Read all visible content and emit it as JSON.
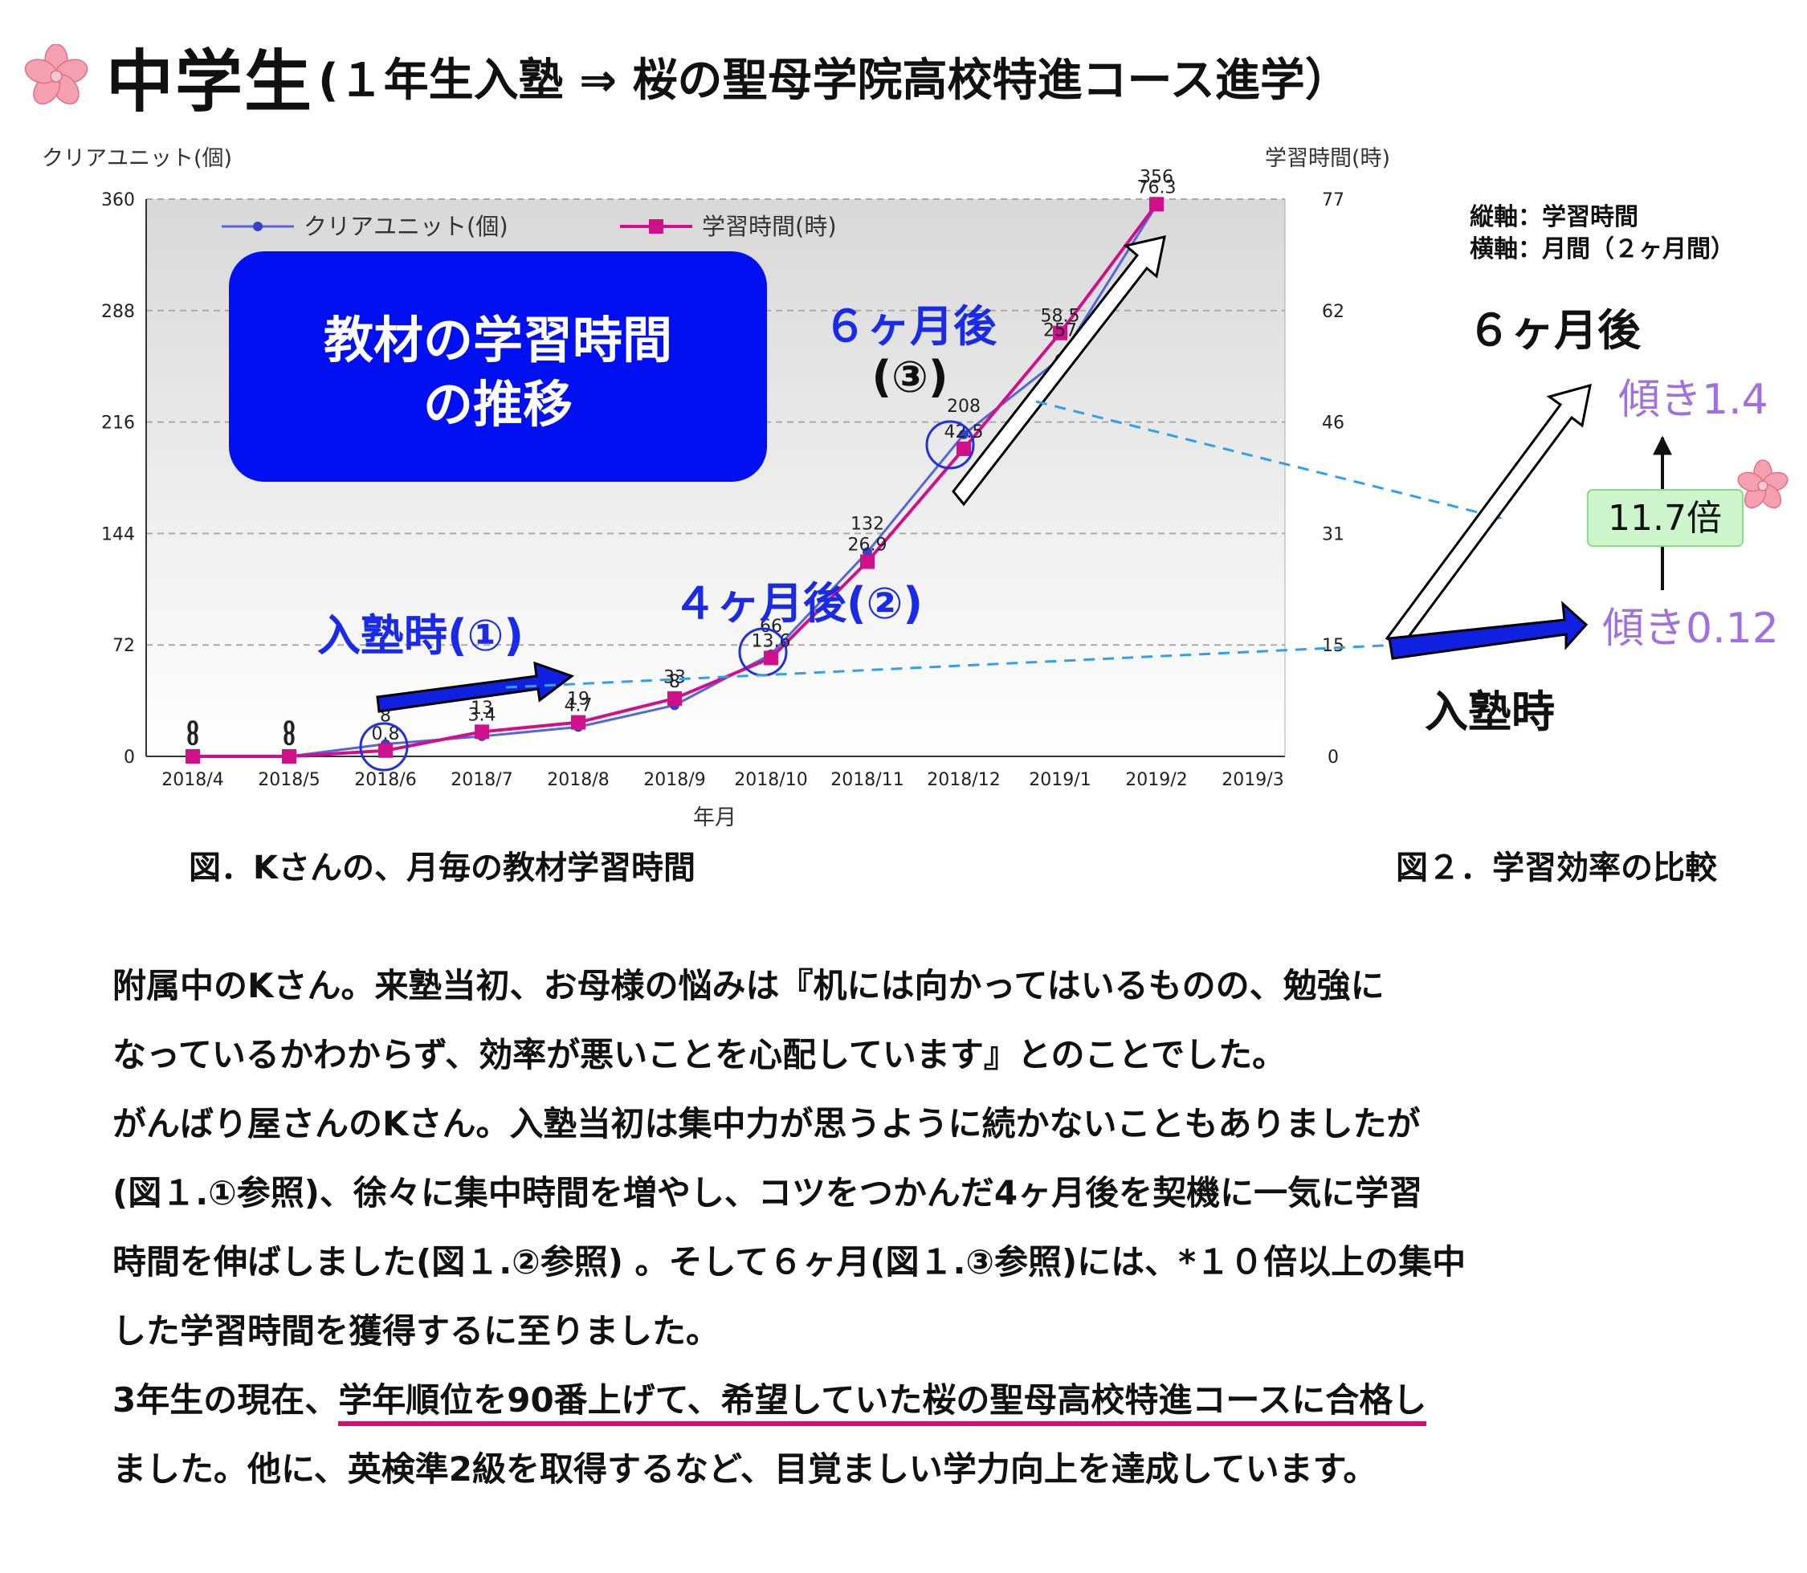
{
  "header": {
    "title_main": "中学生",
    "title_sub": "(１年生入塾 ⇒ 桜の聖母学院高校特進コース進学）",
    "icon": "sakura-flower-icon"
  },
  "chart_data": {
    "type": "line",
    "categories": [
      "2018/4",
      "2018/5",
      "2018/6",
      "2018/7",
      "2018/8",
      "2018/9",
      "2018/10",
      "2018/11",
      "2018/12",
      "2019/1",
      "2019/2",
      "2019/3"
    ],
    "xlabel": "年月",
    "ylabel_left": "クリアユニット(個)",
    "ylabel_right": "学習時間(時)",
    "ylim_left": [
      0,
      360
    ],
    "ylim_right": [
      0,
      77
    ],
    "yticks_left": [
      "0",
      "72",
      "144",
      "216",
      "288",
      "360"
    ],
    "yticks_right": [
      "0",
      "15",
      "31",
      "46",
      "62",
      "77"
    ],
    "grid": true,
    "legend_position": "top",
    "series": [
      {
        "name": "クリアユニット(個)",
        "axis": "left",
        "color": "#5566dd",
        "marker": "circle",
        "values": [
          0,
          0,
          8,
          13,
          19,
          33,
          66,
          132,
          208,
          257,
          356,
          null
        ],
        "labels": [
          "0",
          "0",
          "8",
          "13",
          "19",
          "33",
          "66",
          "132",
          "208",
          "257",
          "356",
          ""
        ]
      },
      {
        "name": "学習時間(時)",
        "axis": "right",
        "color": "#d0108a",
        "marker": "square",
        "values": [
          0,
          0,
          0.8,
          3.4,
          4.7,
          8,
          13.6,
          26.9,
          42.5,
          58.5,
          76.3,
          null
        ],
        "labels": [
          "0",
          "0",
          "0.8",
          "3.4",
          "4.7",
          "8",
          "13.6",
          "26.9",
          "42.5",
          "58.5",
          "76.3",
          ""
        ]
      }
    ]
  },
  "overlay": {
    "box_text_line1": "教材の学習時間",
    "box_text_line2": "の推移",
    "label_join": "入塾時(①)",
    "label_4m": "４ヶ月後(②)",
    "label_6m_line1": "６ヶ月後",
    "label_6m_line2": "(③)"
  },
  "fig2": {
    "axis_note_line1": "縦軸：学習時間",
    "axis_note_line2": "横軸：月間（２ヶ月間）",
    "label_6m": "６ヶ月後",
    "label_join": "入塾時",
    "slope_high": "傾き1.4",
    "slope_low": "傾き0.12",
    "ratio": "11.7倍"
  },
  "captions": {
    "fig1": "図．Kさんの、月毎の教材学習時間",
    "fig2": "図２．学習効率の比較"
  },
  "body": {
    "line1": "附属中のKさん。来塾当初、お母様の悩みは『机には向かってはいるものの、勉強に",
    "line2": "なっているかわからず、効率が悪いことを心配しています』とのことでした。",
    "line3": "がんばり屋さんのKさん。入塾当初は集中力が思うように続かないこともありましたが",
    "line4": "(図１.①参照)、徐々に集中時間を増やし、コツをつかんだ4ヶ月後を契機に一気に学習",
    "line5": "時間を伸ばしました(図１.②参照) 。そして６ヶ月(図１.③参照)には、*１０倍以上の集中",
    "line6": "した学習時間を獲得するに至りました。",
    "line7_pre": "3年生の現在、",
    "line7_underlined": "学年順位を90番上げて、希望していた桜の聖母高校特進コースに合格し",
    "line8": "ました。他に、英検準2級を取得するなど、目覚ましい学力向上を達成しています。"
  },
  "colors": {
    "accent_blue_box": "#0010f0",
    "series_blue": "#5566dd",
    "series_magenta": "#d0108a",
    "arrow_blue": "#1020e0",
    "dashed_arrow": "#30a0ee",
    "circle_marker": "#2030e0",
    "slope_text": "#a070e0",
    "ratio_box": "#ccf5cc",
    "underline": "#d0106a"
  }
}
